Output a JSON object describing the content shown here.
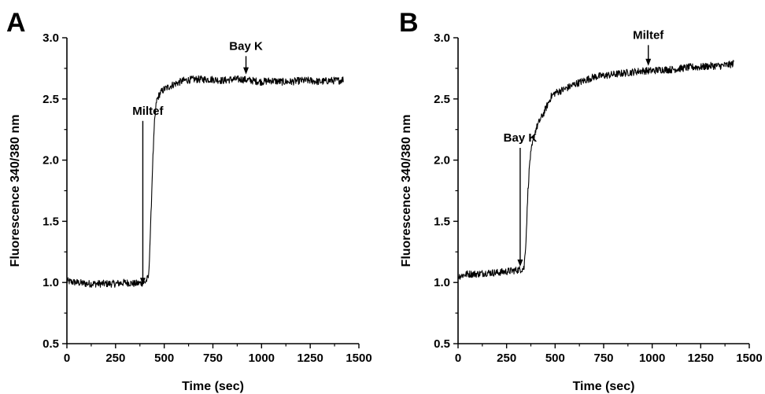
{
  "chart_data": [
    {
      "type": "line",
      "panel_label": "A",
      "xlabel": "Time (sec)",
      "ylabel": "Fluorescence 340/380 nm",
      "xlim": [
        0,
        1500
      ],
      "ylim": [
        0.5,
        3.0
      ],
      "xticks": [
        "0",
        "250",
        "500",
        "750",
        "1000",
        "1250",
        "1500"
      ],
      "yticks": [
        "0.5",
        "1.0",
        "1.5",
        "2.0",
        "2.5",
        "3.0"
      ],
      "series": [
        {
          "x": [
            0,
            50,
            100,
            150,
            200,
            250,
            300,
            350,
            400,
            410,
            420,
            430,
            440,
            450,
            460,
            470,
            480,
            500,
            550,
            600,
            650,
            700,
            750,
            800,
            850,
            900,
            950,
            1000,
            1050,
            1100,
            1150,
            1200,
            1250,
            1300,
            1350,
            1400,
            1420
          ],
          "y": [
            1.01,
            1.0,
            0.99,
            0.99,
            0.99,
            0.99,
            1.0,
            0.99,
            1.0,
            1.02,
            1.05,
            1.45,
            1.95,
            2.3,
            2.48,
            2.52,
            2.55,
            2.58,
            2.62,
            2.65,
            2.66,
            2.66,
            2.66,
            2.65,
            2.66,
            2.66,
            2.65,
            2.64,
            2.65,
            2.64,
            2.64,
            2.65,
            2.65,
            2.64,
            2.65,
            2.65,
            2.66
          ],
          "noise": 0.03
        }
      ],
      "annotations": [
        {
          "text": "Miltef",
          "x": 390,
          "y_tip": 0.98,
          "y_top": 2.32,
          "label_side": "left"
        },
        {
          "text": "Bay K",
          "x": 920,
          "y_tip": 2.7,
          "y_top": 2.85,
          "label_side": "center"
        }
      ]
    },
    {
      "type": "line",
      "panel_label": "B",
      "xlabel": "Time (sec)",
      "ylabel": "Fluorescence 340/380 nm",
      "xlim": [
        0,
        1500
      ],
      "ylim": [
        0.5,
        3.0
      ],
      "xticks": [
        "0",
        "250",
        "500",
        "750",
        "1000",
        "1250",
        "1500"
      ],
      "yticks": [
        "0.5",
        "1.0",
        "1.5",
        "2.0",
        "2.5",
        "3.0"
      ],
      "series": [
        {
          "x": [
            0,
            50,
            100,
            150,
            200,
            250,
            300,
            330,
            340,
            350,
            360,
            370,
            380,
            390,
            400,
            420,
            440,
            460,
            480,
            500,
            550,
            600,
            650,
            700,
            750,
            800,
            850,
            900,
            950,
            1000,
            1050,
            1100,
            1150,
            1200,
            1250,
            1300,
            1350,
            1400,
            1420
          ],
          "y": [
            1.05,
            1.07,
            1.07,
            1.08,
            1.08,
            1.09,
            1.1,
            1.11,
            1.12,
            1.35,
            1.75,
            2.0,
            2.1,
            2.18,
            2.25,
            2.32,
            2.38,
            2.45,
            2.52,
            2.55,
            2.58,
            2.62,
            2.65,
            2.68,
            2.69,
            2.7,
            2.71,
            2.72,
            2.73,
            2.73,
            2.74,
            2.74,
            2.75,
            2.76,
            2.76,
            2.77,
            2.77,
            2.78,
            2.79
          ],
          "noise": 0.03
        }
      ],
      "annotations": [
        {
          "text": "Bay K",
          "x": 320,
          "y_tip": 1.13,
          "y_top": 2.1,
          "label_side": "center"
        },
        {
          "text": "Miltef",
          "x": 980,
          "y_tip": 2.77,
          "y_top": 2.94,
          "label_side": "center"
        }
      ]
    }
  ]
}
